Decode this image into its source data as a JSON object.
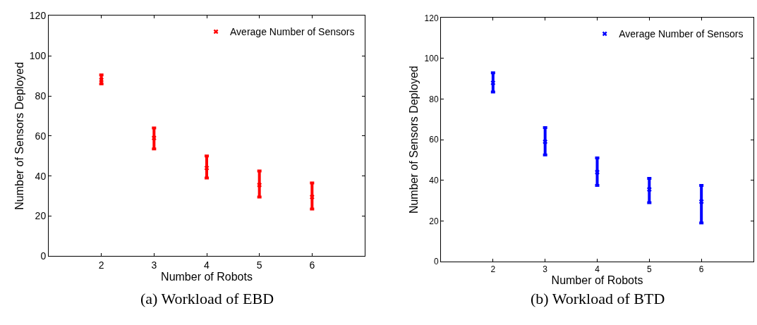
{
  "chart_data": [
    {
      "type": "scatter",
      "title": "(a) Workload of EBD",
      "xlabel": "Number of Robots",
      "ylabel": "Number of Sensors Deployed",
      "x": [
        2,
        3,
        4,
        5,
        6
      ],
      "xlim": [
        1,
        7
      ],
      "xticks": [
        2,
        3,
        4,
        5,
        6
      ],
      "ylim": [
        0,
        120
      ],
      "yticks": [
        0,
        20,
        40,
        60,
        80,
        100,
        120
      ],
      "marker": "cross",
      "legend": "top right",
      "series": [
        {
          "name": "Average Number of Sensors",
          "color": "#ff0000",
          "values": [
            88,
            59,
            44,
            35.5,
            29.5
          ],
          "errors": [
            [
              86,
              90.5
            ],
            [
              53.5,
              64
            ],
            [
              39,
              50
            ],
            [
              29.5,
              42.5
            ],
            [
              23.5,
              36.5
            ]
          ]
        }
      ]
    },
    {
      "type": "scatter",
      "title": "(b) Workload of BTD",
      "xlabel": "Number of Robots",
      "ylabel": "Number of Sensors Deployed",
      "x": [
        2,
        3,
        4,
        5,
        6
      ],
      "xlim": [
        1,
        7
      ],
      "xticks": [
        2,
        3,
        4,
        5,
        6
      ],
      "ylim": [
        0,
        120
      ],
      "yticks": [
        0,
        20,
        40,
        60,
        80,
        100,
        120
      ],
      "marker": "cross",
      "legend": "top right",
      "series": [
        {
          "name": "Average Number of Sensors",
          "color": "#0000ff",
          "values": [
            88,
            59,
            44,
            35.5,
            29.5
          ],
          "errors": [
            [
              83.5,
              93
            ],
            [
              52.5,
              66
            ],
            [
              37.5,
              51
            ],
            [
              29,
              41
            ],
            [
              19,
              37.5
            ]
          ]
        }
      ]
    }
  ]
}
